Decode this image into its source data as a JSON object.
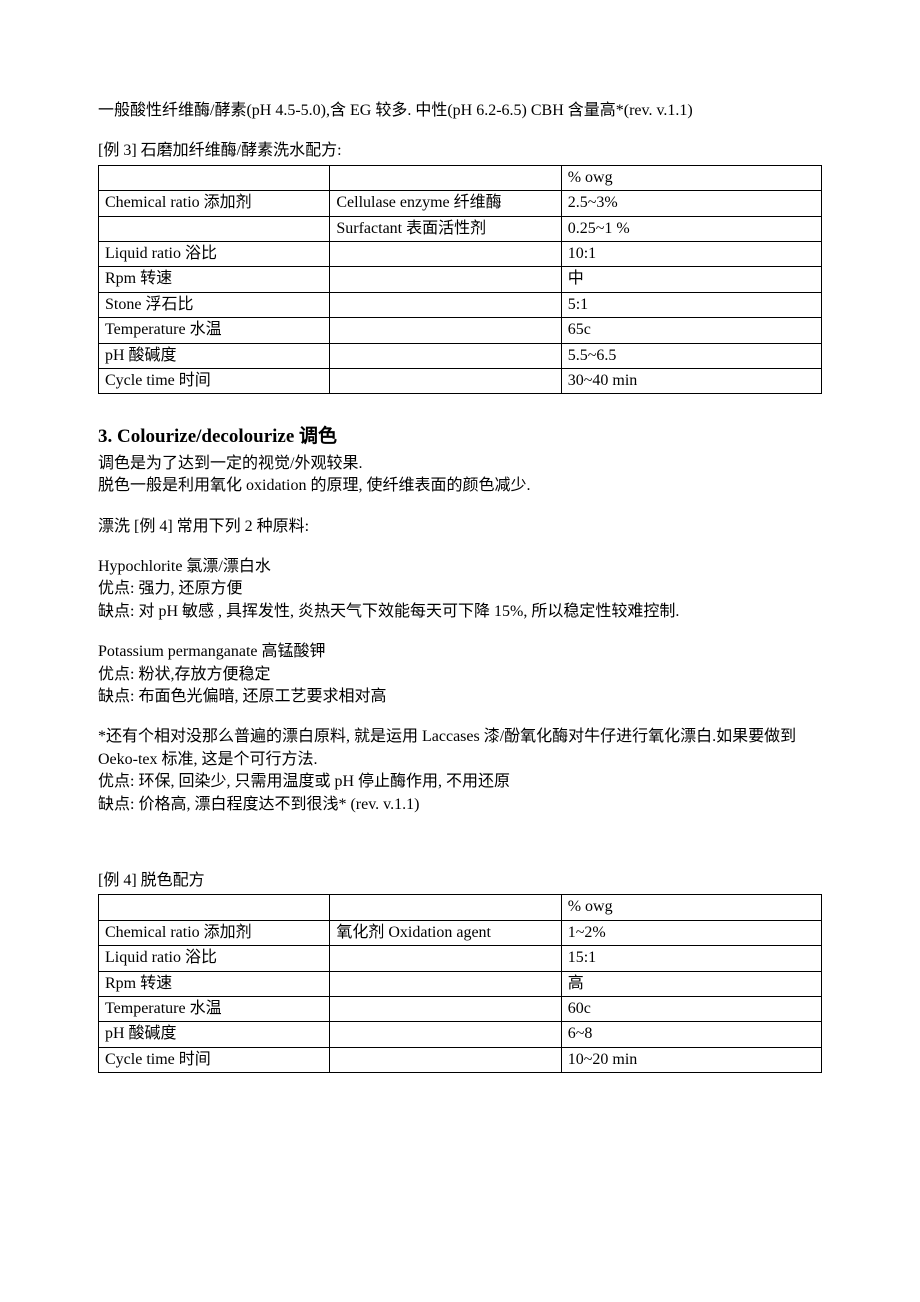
{
  "intro_line": "一般酸性纤维酶/酵素(pH 4.5-5.0),含 EG 较多. 中性(pH 6.2-6.5) CBH 含量高*(rev. v.1.1)",
  "example3_title": "[例 3]  石磨加纤维酶/酵素洗水配方:",
  "table3": {
    "columns": [
      "",
      "",
      "% owg"
    ],
    "rows": [
      [
        "Chemical ratio 添加剂",
        "Cellulase enzyme 纤维酶",
        "2.5~3%"
      ],
      [
        "",
        "Surfactant 表面活性剂",
        "0.25~1 %"
      ],
      [
        "Liquid ratio        浴比",
        "",
        "10:1"
      ],
      [
        "Rpm 转速",
        "",
        "中"
      ],
      [
        "Stone 浮石比",
        "",
        "5:1"
      ],
      [
        "Temperature 水温",
        "",
        "65c"
      ],
      [
        "pH 酸碱度",
        "",
        "5.5~6.5"
      ],
      [
        "Cycle time 时间",
        "",
        "30~40 min"
      ]
    ]
  },
  "section3_heading": "3. Colourize/decolourize 调色",
  "section3_p1": "调色是为了达到一定的视觉/外观较果.",
  "section3_p2": "脱色一般是利用氧化 oxidation 的原理, 使纤维表面的颜色减少.",
  "bleach_intro": "漂洗 [例 4] 常用下列 2 种原料:",
  "hypo_title": "Hypochlorite  氯漂/漂白水",
  "hypo_adv": "优点: 强力, 还原方便",
  "hypo_dis": "缺点: 对 pH 敏感 , 具挥发性, 炎热天气下效能每天可下降 15%, 所以稳定性较难控制.",
  "pp_title": "Potassium permanganate 高锰酸钾",
  "pp_adv": "优点:  粉状,存放方便稳定",
  "pp_dis": "缺点:  布面色光偏暗, 还原工艺要求相对高",
  "laccase_p1": "*还有个相对没那么普遍的漂白原料, 就是运用 Laccases 漆/酚氧化酶对牛仔进行氧化漂白.如果要做到 Oeko-tex 标准, 这是个可行方法.",
  "laccase_adv": "优点:  环保, 回染少,  只需用温度或 pH 停止酶作用, 不用还原",
  "laccase_dis": "缺点:  价格高, 漂白程度达不到很浅* (rev. v.1.1)",
  "example4_title": "[例 4]  脱色配方",
  "table4": {
    "columns": [
      "",
      "",
      "% owg"
    ],
    "rows": [
      [
        "Chemical ratio      添加剂",
        "氧化剂 Oxidation agent",
        "1~2%"
      ],
      [
        "Liquid ratio        浴比",
        "",
        "15:1"
      ],
      [
        "Rpm 转速",
        "",
        "高"
      ],
      [
        "Temperature 水温",
        "",
        "60c"
      ],
      [
        "pH 酸碱度",
        "",
        "6~8"
      ],
      [
        "Cycle time 时间",
        "",
        "10~20 min"
      ]
    ]
  }
}
